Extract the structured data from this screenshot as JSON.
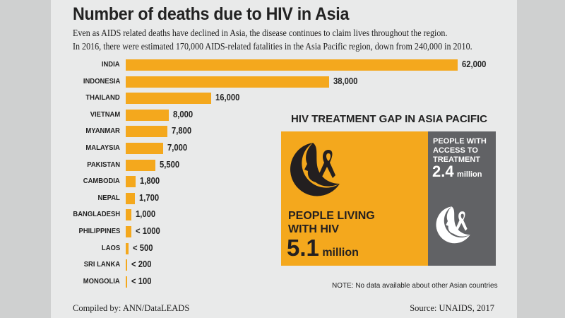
{
  "chart_data": {
    "type": "bar",
    "orientation": "horizontal",
    "title": "Number of deaths due to HIV in Asia",
    "subtitle": [
      "Even as AIDS related deaths have declined in Asia, the disease continues to claim lives throughout the region.",
      "In 2016, there were estimated 170,000 AIDS-related fatalities in the Asia Pacific region, down from 240,000 in 2010."
    ],
    "categories": [
      "INDIA",
      "INDONESIA",
      "THAILAND",
      "VIETNAM",
      "MYANMAR",
      "MALAYSIA",
      "PAKISTAN",
      "CAMBODIA",
      "NEPAL",
      "BANGLADESH",
      "PHILIPPINES",
      "LAOS",
      "SRI LANKA",
      "MONGOLIA"
    ],
    "values": [
      62000,
      38000,
      16000,
      8000,
      7800,
      7000,
      5500,
      1800,
      1700,
      1000,
      1000,
      500,
      200,
      100
    ],
    "data_labels": [
      "62,000",
      "38,000",
      "16,000",
      "8,000",
      "7,800",
      "7,000",
      "5,500",
      "1,800",
      "1,700",
      "1,000",
      "< 1000",
      "< 500",
      "< 200",
      "< 100"
    ],
    "bar_color": "#f4a81d",
    "grid": false
  },
  "treatment_gap": {
    "title": "HIV TREATMENT GAP IN ASIA PACIFIC",
    "living": {
      "label_line1": "PEOPLE LIVING",
      "label_line2": "WITH HIV",
      "number": "5.1",
      "unit": "million",
      "color": "#f4a81d",
      "icon": "face-ribbon-icon"
    },
    "access": {
      "label_line1": "PEOPLE WITH",
      "label_line2": "ACCESS TO",
      "label_line3": "TREATMENT",
      "number": "2.4",
      "unit": "million",
      "color": "#616265",
      "icon": "face-ribbon-icon"
    },
    "note": "NOTE: No data available about other Asian countries"
  },
  "footer": {
    "compiled": "Compiled by: ANN/DataLEADS",
    "source": "Source: UNAIDS, 2017"
  }
}
